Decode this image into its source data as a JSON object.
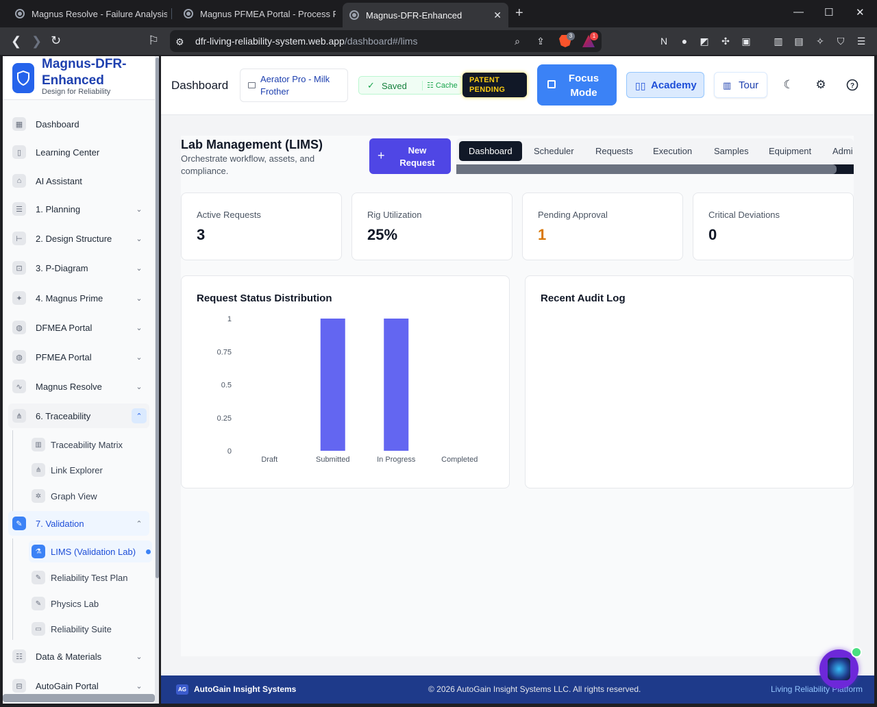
{
  "browser": {
    "tabs": [
      {
        "title": "Magnus Resolve - Failure Analysis",
        "active": false
      },
      {
        "title": "Magnus PFMEA Portal - Process Failu",
        "active": false
      },
      {
        "title": "Magnus-DFR-Enhanced",
        "active": true
      }
    ],
    "new_tab": "+",
    "url_host": "dfr-living-reliability-system.web.app",
    "url_path": "/dashboard#/lims",
    "extension_badges": {
      "brave": "3",
      "rewards": "1"
    }
  },
  "sidebar": {
    "brand_title": "Magnus-DFR-Enhanced",
    "brand_subtitle": "Design for Reliability",
    "items": [
      {
        "label": "Dashboard",
        "icon": "grid-icon"
      },
      {
        "label": "Learning Center",
        "icon": "book-icon"
      },
      {
        "label": "AI Assistant",
        "icon": "bot-icon"
      },
      {
        "label": "1. Planning",
        "icon": "list-check-icon"
      },
      {
        "label": "2. Design Structure",
        "icon": "tree-icon"
      },
      {
        "label": "3. P-Diagram",
        "icon": "diagram-icon"
      },
      {
        "label": "4. Magnus Prime",
        "icon": "sparkles-icon"
      },
      {
        "label": "DFMEA Portal",
        "icon": "shield-icon"
      },
      {
        "label": "PFMEA Portal",
        "icon": "shield-icon"
      },
      {
        "label": "Magnus Resolve",
        "icon": "activity-icon"
      },
      {
        "label": "6. Traceability",
        "icon": "share-icon"
      },
      {
        "label": "7. Validation",
        "icon": "pencil-icon"
      },
      {
        "label": "Data & Materials",
        "icon": "database-icon"
      },
      {
        "label": "AutoGain Portal",
        "icon": "portal-icon"
      }
    ],
    "traceability_sub": [
      {
        "label": "Traceability Matrix",
        "icon": "bar-chart-icon"
      },
      {
        "label": "Link Explorer",
        "icon": "share-icon"
      },
      {
        "label": "Graph View",
        "icon": "graph-icon"
      }
    ],
    "validation_sub": [
      {
        "label": "LIMS (Validation Lab)",
        "icon": "microscope-icon",
        "active": true
      },
      {
        "label": "Reliability Test Plan",
        "icon": "pencil-icon"
      },
      {
        "label": "Physics Lab",
        "icon": "pencil-icon"
      },
      {
        "label": "Reliability Suite",
        "icon": "window-icon"
      }
    ]
  },
  "header": {
    "title": "Dashboard",
    "project": "Aerator Pro - Milk Frother",
    "saved": "Saved",
    "cache": "Cache",
    "patent": "PATENT PENDING",
    "focus": "Focus Mode",
    "academy": "Academy",
    "tour": "Tour"
  },
  "lims": {
    "title": "Lab Management (LIMS)",
    "subtitle": "Orchestrate workflow, assets, and compliance.",
    "new_request": "New Request",
    "tabs": [
      "Dashboard",
      "Scheduler",
      "Requests",
      "Execution",
      "Samples",
      "Equipment",
      "Admi"
    ]
  },
  "stats": [
    {
      "label": "Active Requests",
      "value": "3"
    },
    {
      "label": "Rig Utilization",
      "value": "25%"
    },
    {
      "label": "Pending Approval",
      "value": "1"
    },
    {
      "label": "Critical Deviations",
      "value": "0"
    }
  ],
  "cards": {
    "chart_title": "Request Status Distribution",
    "audit_title": "Recent Audit Log"
  },
  "chart_data": {
    "type": "bar",
    "title": "Request Status Distribution",
    "categories": [
      "Draft",
      "Submitted",
      "In Progress",
      "Completed"
    ],
    "values": [
      0,
      1,
      1,
      0
    ],
    "ylim": [
      0,
      1
    ],
    "yticks": [
      "0",
      "0.25",
      "0.5",
      "0.75",
      "1"
    ],
    "bar_color": "#6366f1",
    "grid": false
  },
  "footer": {
    "logo": "AG",
    "company": "AutoGain Insight Systems",
    "copyright": "© 2026 AutoGain Insight Systems LLC. All rights reserved.",
    "tagline": "Living Reliability Platform"
  }
}
